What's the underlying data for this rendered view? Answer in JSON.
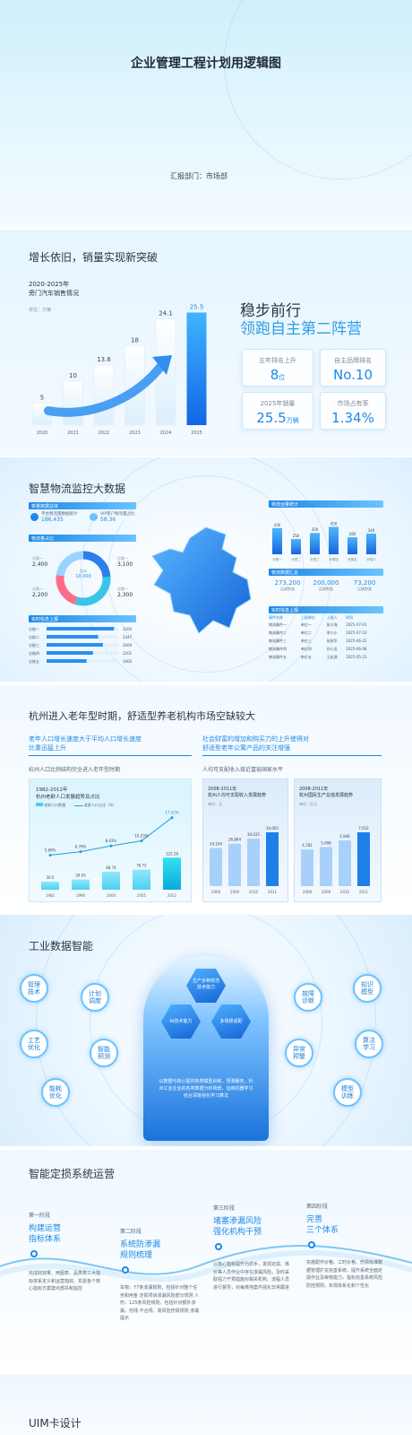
{
  "cover": {
    "title": "企业管理工程计划用逻辑图",
    "dept": "汇报部门：市场部"
  },
  "sales": {
    "heading": "增长依旧，销量实现新突破",
    "chart_title_1": "2020-2025年",
    "chart_title_2": "旁门汽车销售情况",
    "unit": "单位：万辆",
    "headline_1": "稳步前行",
    "headline_2": "领跑自主第二阵营",
    "stats": [
      {
        "label": "五年排名上升",
        "value": "8",
        "suffix": "位"
      },
      {
        "label": "自主品牌排名",
        "value": "No.10",
        "suffix": ""
      },
      {
        "label": "2025年销量",
        "value": "25.5",
        "suffix": "万辆"
      },
      {
        "label": "市场占有率",
        "value": "1.34%",
        "suffix": ""
      }
    ]
  },
  "logistics": {
    "heading": "智慧物流监控大数据",
    "box1": "数量数据总体",
    "kpi1_label": "平台物流量数据统计",
    "kpi1_value": "186,435",
    "kpi2_label": "VIP客户物流量占比",
    "kpi2_value": "58.36",
    "box2": "物流量占比",
    "donut_center_label": "总计",
    "donut_center_value": "10,000",
    "donut_labels": [
      {
        "name": "分类一",
        "value": "2,400"
      },
      {
        "name": "分类一",
        "value": "3,100"
      },
      {
        "name": "分类一",
        "value": "2,200"
      },
      {
        "name": "分类一",
        "value": "2,300"
      }
    ],
    "box3": "实时信息上报",
    "hbar_labels": [
      "分拨一",
      "分拨二",
      "分拨三",
      "分拨四",
      "分拨五"
    ],
    "hbar_values": [
      "3200",
      "2447",
      "2669",
      "2201",
      "1900"
    ],
    "right_box1": "物流运量统计",
    "right_bar_values": [
      "430",
      "250",
      "350",
      "450",
      "280",
      "340"
    ],
    "right_box2": "物流数据汇总",
    "right_sum": [
      {
        "value": "273,200",
        "label": "运输数量"
      },
      {
        "value": "200,000",
        "label": "运输数量"
      },
      {
        "value": "73,200",
        "label": "运输数量"
      }
    ],
    "right_box3": "实时信息上报",
    "table_head": [
      "事件名称",
      "上报单位",
      "上报人",
      "时间"
    ],
    "table_rows": [
      [
        "物流事件一",
        "单位一",
        "张大海",
        "2025-07-01"
      ],
      [
        "物流事件二",
        "单位二",
        "李小小",
        "2025-07-10"
      ],
      [
        "物流事件三",
        "单位三",
        "张张华",
        "2025-06-22"
      ],
      [
        "物流事件四",
        "单位四",
        "孙小龙",
        "2025-06-08"
      ],
      [
        "物流事件五",
        "单位五",
        "王赵源",
        "2025-05-23"
      ]
    ]
  },
  "aging": {
    "heading": "杭州进入老年型时期，舒适型养老机构市场空缺较大",
    "left_sub_1": "老年人口增长速度大于平均人口增长速度",
    "left_sub_2": "比重迅猛上升",
    "left_desc": "杭州人口比例结构完全进入老年型时期",
    "left_chart_title_1": "1982-2012年",
    "left_chart_title_2": "杭州老龄人口发展趋势及占比",
    "left_legend_1": "老龄人口数量",
    "left_legend_2": "老龄人口占比（%）",
    "right_sub_1": "社会财富的增加和购买力的上升使得对",
    "right_sub_2": "舒适型老年公寓产品的关注增强",
    "right_desc": "人均可支配收入接近富裕国家水平",
    "rc1_title_1": "2008-2011年",
    "rc1_title_2": "杭州人均可支配收入发展趋势",
    "rc1_unit": "单位：元",
    "rc2_title_1": "2008-2011年",
    "rc2_title_2": "杭州国民生产总值发展趋势",
    "rc2_unit": "单位：亿元"
  },
  "industry": {
    "heading": "工业数据智能",
    "bubbles": [
      "管理\n技术",
      "计划\n调度",
      "工艺\n优化",
      "智能\n预测",
      "能耗\n优化",
      "故障\n诊断",
      "知识\n模型",
      "异常\n预警",
      "算法\n学习",
      "模型\n训练"
    ],
    "hex": [
      "生产多种规范\n技术能力",
      "AI技术能力",
      "多场景适配"
    ],
    "desc": "以数据与核心提供各类模型训练、预测服务，针对工业企业的各类数据分析场景，运用机器学习结合深度强化学习算法"
  },
  "ops": {
    "heading": "智能定损系统运营",
    "stages": [
      {
        "tag": "第一阶段",
        "title_1": "构建运营",
        "title_2": "指标体系",
        "desc": "完成财效果、用图表、品类类三大指标体系定义和运营指效、实验各个核心指标方案建点部并和监控"
      },
      {
        "tag": "第二阶段",
        "title_1": "系统防渗漏",
        "title_2": "规则梳理",
        "desc": "车物：77条渗漏规则，包括针对整个任务和用金 定损项目渗漏风险部分规则  人伤：125条风险规则，包括针对额外渗漏，伤残·不合规，高风险伤情规则 渗漏提示"
      },
      {
        "tag": "第三阶段",
        "title_1": "堵塞渗漏风险",
        "title_2": "强化机构干预",
        "desc": "以核心指标提升为抓手，发现定损、核价等人员作业中存在渗漏风险，及时采取强力干预措施对相关机构、流程人员进行督导，对每类地案件强化日常跟进"
      },
      {
        "tag": "第四阶段",
        "title_1": "完善",
        "title_2": "三个体系",
        "desc": "实施配件价格、工时价格、伤情标准数据管理扩充完善系统，提升系统全面定损作业及审核能力，指标完善系统风险防控规则，实现体系化和个性化"
      }
    ]
  },
  "uim": {
    "heading": "UIM卡设计"
  },
  "colors": {
    "accent": "#1e88e5",
    "light": "#6cc3ff",
    "text": "#2c3440"
  },
  "chart_data": [
    {
      "type": "bar",
      "title": "旁门汽车销售情况",
      "categories": [
        "2020",
        "2021",
        "2022",
        "2023",
        "2024",
        "2025"
      ],
      "values": [
        5,
        10,
        13.6,
        18,
        24.1,
        25.5
      ],
      "ylabel": "单位：万辆",
      "ylim": [
        0,
        26
      ]
    },
    {
      "type": "bar",
      "title": "物流运量统计",
      "categories": [
        "分拨一",
        "分拨二",
        "分拨三",
        "分拨四",
        "分拨五",
        "分拨六"
      ],
      "values": [
        430,
        250,
        350,
        450,
        280,
        340
      ],
      "ylim": [
        0,
        500
      ]
    },
    {
      "type": "bar",
      "title": "实时信息上报",
      "categories": [
        "分拨一",
        "分拨二",
        "分拨三",
        "分拨四",
        "分拨五"
      ],
      "values": [
        3200,
        2447,
        2669,
        2201,
        1900
      ]
    },
    {
      "type": "bar",
      "title": "杭州老龄人口发展趋势及占比",
      "categories": [
        "1982",
        "1990",
        "2000",
        "2005",
        "2012"
      ],
      "series": [
        {
          "name": "老龄人口数量",
          "values": [
            30.5,
            39.03,
            68.74,
            76.72,
            122.16
          ]
        },
        {
          "name": "老龄人口占比（%）",
          "values": [
            5.69,
            6.79,
            8.63,
            10.23,
            17.52
          ]
        }
      ]
    },
    {
      "type": "bar",
      "title": "杭州人均可支配收入发展趋势",
      "categories": [
        "2008",
        "2009",
        "2010",
        "2011"
      ],
      "values": [
        24104,
        26864,
        30035,
        34065
      ],
      "ylabel": "单位：元"
    },
    {
      "type": "bar",
      "title": "杭州国民生产总值发展趋势",
      "categories": [
        "2008",
        "2009",
        "2010",
        "2011"
      ],
      "values": [
        4781,
        5098,
        5946,
        7012
      ],
      "ylabel": "单位：亿元"
    }
  ]
}
